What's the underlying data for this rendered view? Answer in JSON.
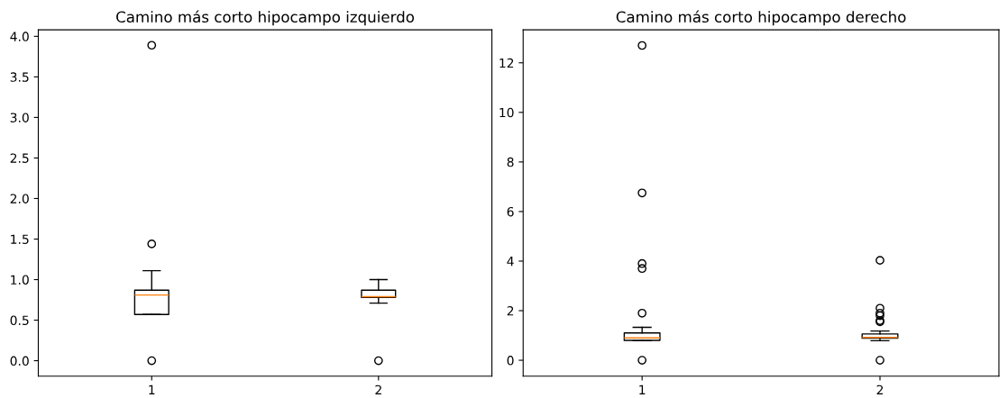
{
  "chart_data": [
    {
      "type": "box",
      "title": "Camino más corto hipocampo izquierdo",
      "categories": [
        "1",
        "2"
      ],
      "boxes": [
        {
          "low": 0.57,
          "q1": 0.57,
          "median": 0.81,
          "q3": 0.87,
          "high": 1.11,
          "outliers": [
            3.89,
            1.44,
            0.0
          ]
        },
        {
          "low": 0.71,
          "q1": 0.78,
          "median": 0.79,
          "q3": 0.87,
          "high": 1.0,
          "outliers": [
            0.0
          ]
        }
      ],
      "ylim": [
        -0.19,
        4.08
      ],
      "yticks": [
        {
          "value": 0,
          "label": "0.0"
        },
        0.5,
        {
          "value": 1,
          "label": "1.0"
        },
        1.5,
        {
          "value": 2,
          "label": "2.0"
        },
        2.5,
        {
          "value": 3,
          "label": "3.0"
        },
        3.5,
        {
          "value": 4,
          "label": "4.0"
        }
      ],
      "grid": false
    },
    {
      "type": "box",
      "title": "Camino más corto hipocampo derecho",
      "categories": [
        "1",
        "2"
      ],
      "boxes": [
        {
          "low": 0.79,
          "q1": 0.8,
          "median": 0.9,
          "q3": 1.1,
          "high": 1.33,
          "outliers": [
            12.7,
            6.75,
            3.9,
            3.7,
            1.9,
            0.0
          ]
        },
        {
          "low": 0.79,
          "q1": 0.89,
          "median": 0.92,
          "q3": 1.06,
          "high": 1.18,
          "outliers": [
            4.03,
            2.1,
            1.9,
            1.8,
            1.6,
            1.55,
            0.0
          ]
        }
      ],
      "ylim": [
        -0.64,
        13.33
      ],
      "yticks": [
        0,
        2,
        4,
        6,
        8,
        10,
        12
      ],
      "grid": false
    }
  ]
}
